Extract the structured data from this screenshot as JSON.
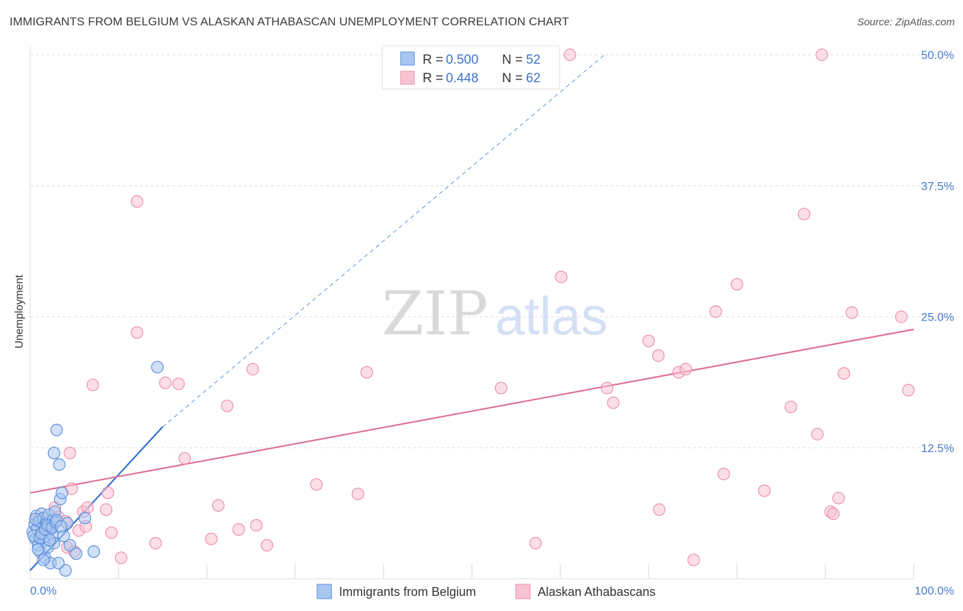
{
  "title": "IMMIGRANTS FROM BELGIUM VS ALASKAN ATHABASCAN UNEMPLOYMENT CORRELATION CHART",
  "source": "Source: ZipAtlas.com",
  "watermark": {
    "zip": "ZIP",
    "atlas": "atlas"
  },
  "colors": {
    "blue_fill": "#a9c6f0",
    "blue_stroke": "#5b8fd9",
    "blue_line": "#2f6fd0",
    "pink_fill": "#f7c3d2",
    "pink_stroke": "#ea8fab",
    "pink_line": "#e06d94",
    "tick_blue": "#4a7bd0",
    "grid": "#dedede"
  },
  "legend": {
    "series": [
      {
        "r_label": "R = ",
        "r_value": "0.500",
        "n_label": "N = ",
        "n_value": "52"
      },
      {
        "r_label": "R = ",
        "r_value": "0.448",
        "n_label": "N = ",
        "n_value": "62"
      }
    ]
  },
  "chart_data": {
    "type": "scatter",
    "title": "IMMIGRANTS FROM BELGIUM VS ALASKAN ATHABASCAN UNEMPLOYMENT CORRELATION CHART",
    "xlabel": "",
    "ylabel": "Unemployment",
    "xlim": [
      0,
      100
    ],
    "ylim": [
      0,
      52
    ],
    "x_tick_labels": [
      {
        "value": 0,
        "label": "0.0%"
      },
      {
        "value": 100,
        "label": "100.0%"
      }
    ],
    "y_ticks": [
      {
        "value": 12.5,
        "label": "12.5%"
      },
      {
        "value": 25,
        "label": "25.0%"
      },
      {
        "value": 37.5,
        "label": "37.5%"
      },
      {
        "value": 50,
        "label": "50.0%"
      }
    ],
    "series": [
      {
        "name": "Immigrants from Belgium",
        "R": 0.5,
        "N": 52,
        "trend": {
          "x0": 0,
          "y0": 0.8,
          "x1": 15,
          "y1": 14.5,
          "dash_x1": 65,
          "dash_y1": 50
        },
        "points": [
          [
            0.3,
            4.5
          ],
          [
            0.5,
            5.2
          ],
          [
            0.6,
            3.8
          ],
          [
            0.7,
            6.0
          ],
          [
            0.8,
            4.8
          ],
          [
            0.9,
            3.2
          ],
          [
            1.0,
            5.5
          ],
          [
            1.1,
            4.0
          ],
          [
            1.2,
            2.5
          ],
          [
            1.3,
            6.2
          ],
          [
            1.4,
            4.4
          ],
          [
            1.5,
            5.8
          ],
          [
            1.6,
            3.6
          ],
          [
            1.7,
            2.0
          ],
          [
            1.8,
            4.9
          ],
          [
            1.9,
            5.3
          ],
          [
            2.0,
            3.0
          ],
          [
            2.1,
            6.1
          ],
          [
            2.2,
            4.6
          ],
          [
            2.3,
            1.5
          ],
          [
            2.4,
            5.0
          ],
          [
            2.5,
            4.2
          ],
          [
            2.6,
            5.6
          ],
          [
            2.7,
            3.4
          ],
          [
            2.8,
            6.4
          ],
          [
            0.4,
            4.1
          ],
          [
            0.6,
            5.7
          ],
          [
            0.9,
            2.8
          ],
          [
            1.1,
            3.9
          ],
          [
            1.3,
            4.3
          ],
          [
            1.5,
            1.8
          ],
          [
            1.7,
            4.7
          ],
          [
            2.0,
            5.1
          ],
          [
            2.2,
            3.7
          ],
          [
            2.5,
            4.9
          ],
          [
            2.9,
            5.4
          ],
          [
            3.0,
            14.2
          ],
          [
            2.7,
            12.0
          ],
          [
            3.3,
            10.9
          ],
          [
            3.4,
            7.6
          ],
          [
            3.6,
            8.2
          ],
          [
            4.2,
            5.3
          ],
          [
            3.8,
            4.1
          ],
          [
            3.0,
            5.6
          ],
          [
            3.5,
            5.0
          ],
          [
            4.5,
            3.2
          ],
          [
            5.2,
            2.4
          ],
          [
            6.2,
            5.8
          ],
          [
            4.0,
            0.8
          ],
          [
            3.2,
            1.5
          ],
          [
            7.2,
            2.6
          ],
          [
            14.4,
            20.2
          ]
        ]
      },
      {
        "name": "Alaskan Athabascans",
        "R": 0.448,
        "N": 62,
        "trend": {
          "x0": 0,
          "y0": 8.2,
          "x1": 100,
          "y1": 23.8
        },
        "points": [
          [
            0.8,
            5.5
          ],
          [
            1.5,
            4.9
          ],
          [
            2.0,
            5.2
          ],
          [
            2.8,
            6.8
          ],
          [
            3.2,
            5.9
          ],
          [
            4.0,
            5.5
          ],
          [
            4.2,
            3.0
          ],
          [
            4.5,
            12.0
          ],
          [
            4.7,
            8.6
          ],
          [
            5.0,
            2.6
          ],
          [
            5.5,
            4.6
          ],
          [
            6.0,
            6.4
          ],
          [
            6.3,
            5.0
          ],
          [
            6.5,
            6.8
          ],
          [
            7.1,
            18.5
          ],
          [
            8.6,
            6.6
          ],
          [
            8.8,
            8.2
          ],
          [
            9.2,
            4.4
          ],
          [
            10.3,
            2.0
          ],
          [
            12.1,
            36.0
          ],
          [
            12.1,
            23.5
          ],
          [
            14.2,
            3.4
          ],
          [
            15.3,
            18.7
          ],
          [
            16.8,
            18.6
          ],
          [
            17.5,
            11.5
          ],
          [
            20.5,
            3.8
          ],
          [
            21.3,
            7.0
          ],
          [
            22.3,
            16.5
          ],
          [
            23.6,
            4.7
          ],
          [
            25.2,
            20.0
          ],
          [
            25.6,
            5.1
          ],
          [
            26.8,
            3.2
          ],
          [
            32.4,
            9.0
          ],
          [
            37.1,
            8.1
          ],
          [
            38.1,
            19.7
          ],
          [
            53.3,
            18.2
          ],
          [
            57.2,
            3.4
          ],
          [
            60.1,
            28.8
          ],
          [
            61.1,
            50.0
          ],
          [
            65.3,
            18.2
          ],
          [
            66.0,
            16.8
          ],
          [
            70.0,
            22.7
          ],
          [
            71.1,
            21.3
          ],
          [
            71.2,
            6.6
          ],
          [
            73.4,
            19.7
          ],
          [
            74.2,
            20.0
          ],
          [
            75.1,
            1.8
          ],
          [
            77.6,
            25.5
          ],
          [
            78.5,
            10.0
          ],
          [
            80.0,
            28.1
          ],
          [
            83.1,
            8.4
          ],
          [
            86.1,
            16.4
          ],
          [
            87.6,
            34.8
          ],
          [
            89.1,
            13.8
          ],
          [
            89.6,
            50.0
          ],
          [
            90.6,
            6.4
          ],
          [
            91.5,
            7.7
          ],
          [
            92.1,
            19.6
          ],
          [
            93.0,
            25.4
          ],
          [
            98.6,
            25.0
          ],
          [
            99.4,
            18.0
          ],
          [
            90.9,
            6.2
          ]
        ]
      }
    ]
  }
}
